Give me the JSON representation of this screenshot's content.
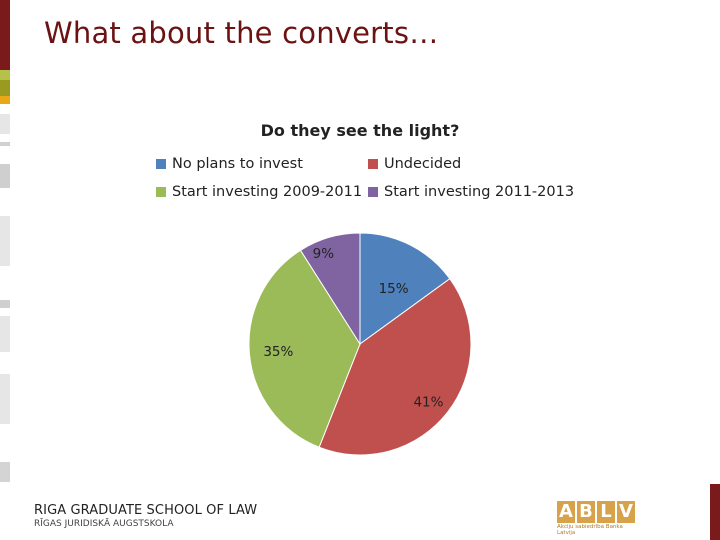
{
  "slide": {
    "title": "What about the converts…"
  },
  "chart_data": {
    "type": "pie",
    "title": "Do they see the light?",
    "legend_position": "top",
    "slices": [
      {
        "name": "No plans to invest",
        "value": 15,
        "label": "15%",
        "color": "#4f81bd"
      },
      {
        "name": "Undecided",
        "value": 41,
        "label": "41%",
        "color": "#c0504d"
      },
      {
        "name": "Start investing 2009-2011",
        "value": 35,
        "label": "35%",
        "color": "#9bbb59"
      },
      {
        "name": "Start investing 2011-2013",
        "value": 9,
        "label": "9%",
        "color": "#8064a2"
      }
    ]
  },
  "footer": {
    "school_name": "RIGA GRADUATE SCHOOL OF LAW",
    "school_name_lv": "RĪGAS JURIDISKĀ AUGSTSKOLA",
    "bank_logo_letters": [
      "A",
      "B",
      "L",
      "V"
    ],
    "bank_logo_subtitle": "Akciju sabiedrība Banka Latvija"
  },
  "decor": {
    "accent_color": "#7b1a1a",
    "stripe_colors": [
      "#b5c24a",
      "#e8a817",
      "#e0e0e0",
      "#d4d4d4"
    ]
  }
}
